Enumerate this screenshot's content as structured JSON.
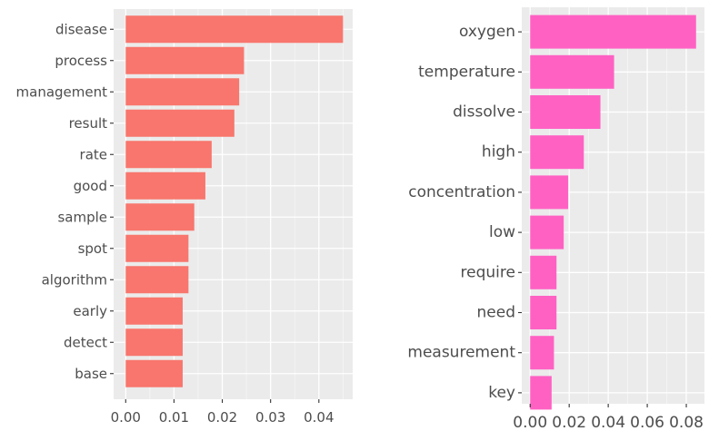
{
  "chart_data": [
    {
      "type": "bar",
      "orientation": "horizontal",
      "categories": [
        "disease",
        "process",
        "management",
        "result",
        "rate",
        "good",
        "sample",
        "spot",
        "algorithm",
        "early",
        "detect",
        "base"
      ],
      "values": [
        0.045,
        0.0245,
        0.0235,
        0.0225,
        0.0178,
        0.0165,
        0.0142,
        0.013,
        0.013,
        0.0118,
        0.0118,
        0.0118
      ],
      "xlim": [
        -0.0025,
        0.047
      ],
      "x_ticks": [
        0,
        0.01,
        0.02,
        0.03,
        0.04
      ],
      "x_tick_labels": [
        "0.00",
        "0.01",
        "0.02",
        "0.03",
        "0.04"
      ],
      "title": "",
      "xlabel": "",
      "ylabel": "",
      "grid": true,
      "bar_color": "#F8766D",
      "panel_bg": "#EBEBEB"
    },
    {
      "type": "bar",
      "orientation": "horizontal",
      "categories": [
        "oxygen",
        "temperature",
        "dissolve",
        "high",
        "concentration",
        "low",
        "require",
        "need",
        "measurement",
        "key"
      ],
      "values": [
        0.085,
        0.043,
        0.036,
        0.0275,
        0.0195,
        0.0172,
        0.0135,
        0.0135,
        0.0122,
        0.011
      ],
      "xlim": [
        -0.0043,
        0.0893
      ],
      "x_ticks": [
        0,
        0.02,
        0.04,
        0.06,
        0.08
      ],
      "x_tick_labels": [
        "0.00",
        "0.02",
        "0.04",
        "0.06",
        "0.08"
      ],
      "title": "",
      "xlabel": "",
      "ylabel": "",
      "grid": true,
      "bar_color": "#FF61C3",
      "panel_bg": "#EBEBEB"
    }
  ]
}
